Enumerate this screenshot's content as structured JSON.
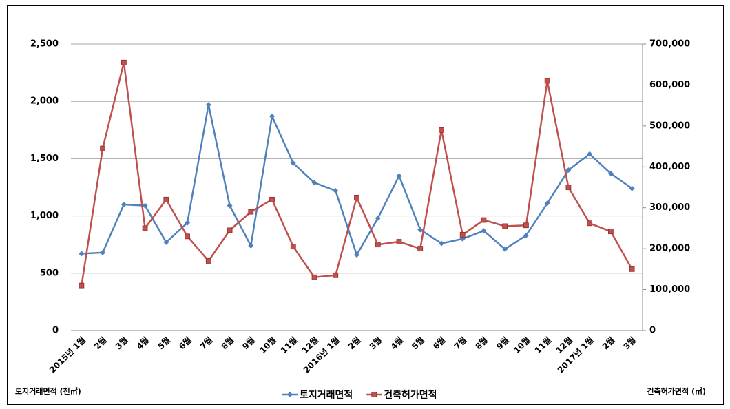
{
  "chart_data": {
    "type": "line",
    "categories": [
      "2015년 1월",
      "2월",
      "3월",
      "4월",
      "5월",
      "6월",
      "7월",
      "8월",
      "9월",
      "10월",
      "11월",
      "12월",
      "2016년 1월",
      "2월",
      "3월",
      "4월",
      "5월",
      "6월",
      "7월",
      "8월",
      "9월",
      "10월",
      "11월",
      "12월",
      "2017년 1월",
      "2월",
      "3월"
    ],
    "series": [
      {
        "name": "토지거래면적",
        "color": "#4f81bd",
        "marker": "diamond",
        "values": [
          670,
          680,
          1100,
          1090,
          770,
          940,
          1970,
          1090,
          740,
          1870,
          1460,
          1290,
          1220,
          660,
          980,
          1350,
          880,
          760,
          800,
          870,
          710,
          830,
          1110,
          1400,
          1540,
          1370,
          1240
        ]
      },
      {
        "name": "건축허가면적",
        "color": "#c0504d",
        "marker": "square",
        "axis": "y2",
        "values": [
          110000,
          445000,
          655000,
          250000,
          320000,
          230000,
          170000,
          245000,
          290000,
          320000,
          205000,
          130000,
          135000,
          325000,
          210000,
          217000,
          200000,
          490000,
          234000,
          270000,
          255000,
          257000,
          610000,
          350000,
          262000,
          242000,
          150000
        ]
      }
    ],
    "ylim": [
      0,
      2500
    ],
    "yticks": [
      0,
      500,
      {
        "value": 1000,
        "label": "1,000"
      },
      {
        "value": 1500,
        "label": "1,500"
      },
      {
        "value": 2000,
        "label": "2,000"
      },
      {
        "value": 2500,
        "label": "2,500"
      }
    ],
    "y2lim": [
      0,
      700000
    ],
    "y2ticks": [
      0,
      {
        "value": 100000,
        "label": "100,000"
      },
      {
        "value": 200000,
        "label": "200,000"
      },
      {
        "value": 300000,
        "label": "300,000"
      },
      {
        "value": 400000,
        "label": "400,000"
      },
      {
        "value": 500000,
        "label": "500,000"
      },
      {
        "value": 600000,
        "label": "600,000"
      },
      {
        "value": 700000,
        "label": "700,000"
      }
    ],
    "y_label": "토지거래면적 (천㎡)",
    "y2_label": "건축허가면적 (㎡)",
    "grid": true,
    "legend": "bottom"
  }
}
